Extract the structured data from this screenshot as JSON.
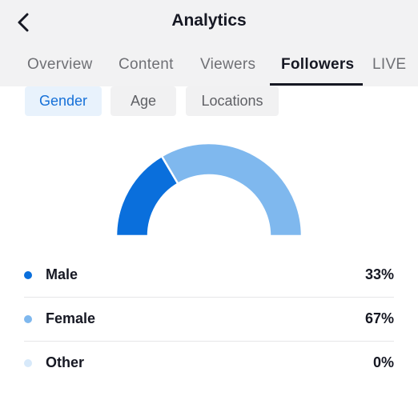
{
  "header": {
    "title": "Analytics",
    "back_icon": "chevron-left-icon"
  },
  "tabs": [
    {
      "label": "Overview",
      "active": false
    },
    {
      "label": "Content",
      "active": false
    },
    {
      "label": "Viewers",
      "active": false
    },
    {
      "label": "Followers",
      "active": true
    },
    {
      "label": "LIVE",
      "active": false
    }
  ],
  "filters": [
    {
      "label": "Gender",
      "active": true
    },
    {
      "label": "Age",
      "active": false
    },
    {
      "label": "Locations",
      "active": false
    }
  ],
  "chart_data": {
    "type": "pie",
    "categories": [
      "Male",
      "Female",
      "Other"
    ],
    "values": [
      33,
      67,
      0
    ],
    "colors": [
      "#0a6fdc",
      "#7fb8ee",
      "#d7e9fa"
    ]
  },
  "legend": [
    {
      "label": "Male",
      "value": "33%",
      "color": "#0a6fdc"
    },
    {
      "label": "Female",
      "value": "67%",
      "color": "#7fb8ee"
    },
    {
      "label": "Other",
      "value": "0%",
      "color": "#d7e9fa"
    }
  ]
}
